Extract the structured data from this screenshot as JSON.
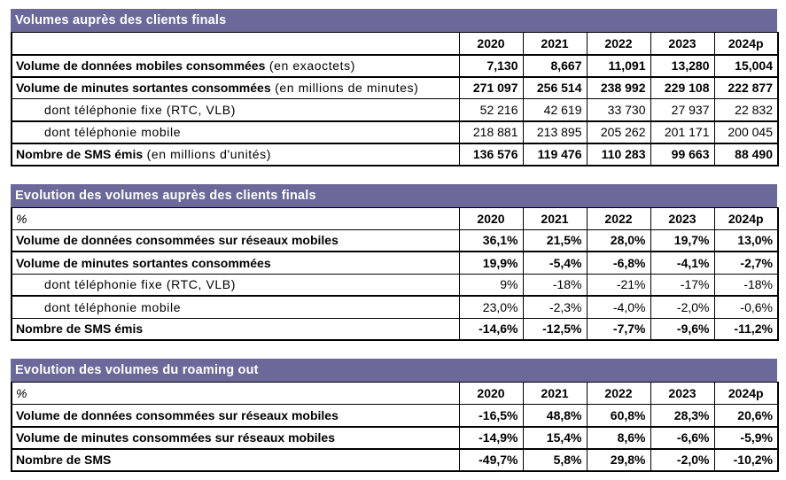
{
  "colors": {
    "header_bg": "#6A6999",
    "header_text": "#ffffff",
    "border": "#000000"
  },
  "columns": [
    "2020",
    "2021",
    "2022",
    "2023",
    "2024p"
  ],
  "tables": [
    {
      "title": "Volumes auprès des clients finals",
      "unit_label": "",
      "rows": [
        {
          "label": "Volume de données mobiles consommées",
          "suffix": " (en exaoctets)",
          "values": [
            "7,130",
            "8,667",
            "11,091",
            "13,280",
            "15,004"
          ]
        },
        {
          "label": "Volume de minutes sortantes consommées",
          "suffix": " (en millions de minutes)",
          "values": [
            "271 097",
            "256 514",
            "238 992",
            "229 108",
            "222 877"
          ]
        },
        {
          "label": "dont téléphonie fixe (RTC, VLB)",
          "suffix": "",
          "values": [
            "52 216",
            "42 619",
            "33 730",
            "27 937",
            "22 832"
          ]
        },
        {
          "label": "dont téléphonie mobile",
          "suffix": "",
          "values": [
            "218 881",
            "213 895",
            "205 262",
            "201 171",
            "200 045"
          ]
        },
        {
          "label": "Nombre de SMS émis",
          "suffix": " (en millions d'unités)",
          "values": [
            "136 576",
            "119 476",
            "110 283",
            "99 663",
            "88 490"
          ]
        }
      ]
    },
    {
      "title": "Evolution des volumes auprès des clients finals",
      "unit_label": "%",
      "rows": [
        {
          "label": "Volume de données consommées sur réseaux mobiles",
          "suffix": "",
          "values": [
            "36,1%",
            "21,5%",
            "28,0%",
            "19,7%",
            "13,0%"
          ]
        },
        {
          "label": "Volume de minutes sortantes consommées",
          "suffix": "",
          "values": [
            "19,9%",
            "-5,4%",
            "-6,8%",
            "-4,1%",
            "-2,7%"
          ]
        },
        {
          "label": "dont téléphonie fixe (RTC, VLB)",
          "suffix": "",
          "values": [
            "9%",
            "-18%",
            "-21%",
            "-17%",
            "-18%"
          ]
        },
        {
          "label": "dont téléphonie mobile",
          "suffix": "",
          "values": [
            "23,0%",
            "-2,3%",
            "-4,0%",
            "-2,0%",
            "-0,6%"
          ]
        },
        {
          "label": "Nombre de SMS émis",
          "suffix": "",
          "values": [
            "-14,6%",
            "-12,5%",
            "-7,7%",
            "-9,6%",
            "-11,2%"
          ]
        }
      ]
    },
    {
      "title": "Evolution des volumes du roaming out",
      "unit_label": "%",
      "rows": [
        {
          "label": "Volume de données consommées sur réseaux mobiles",
          "suffix": "",
          "values": [
            "-16,5%",
            "48,8%",
            "60,8%",
            "28,3%",
            "20,6%"
          ]
        },
        {
          "label": "Volume de minutes consommées sur réseaux mobiles",
          "suffix": "",
          "values": [
            "-14,9%",
            "15,4%",
            "8,6%",
            "-6,6%",
            "-5,9%"
          ]
        },
        {
          "label": "Nombre de SMS",
          "suffix": "",
          "values": [
            "-49,7%",
            "5,8%",
            "29,8%",
            "-2,0%",
            "-10,2%"
          ]
        }
      ]
    }
  ]
}
